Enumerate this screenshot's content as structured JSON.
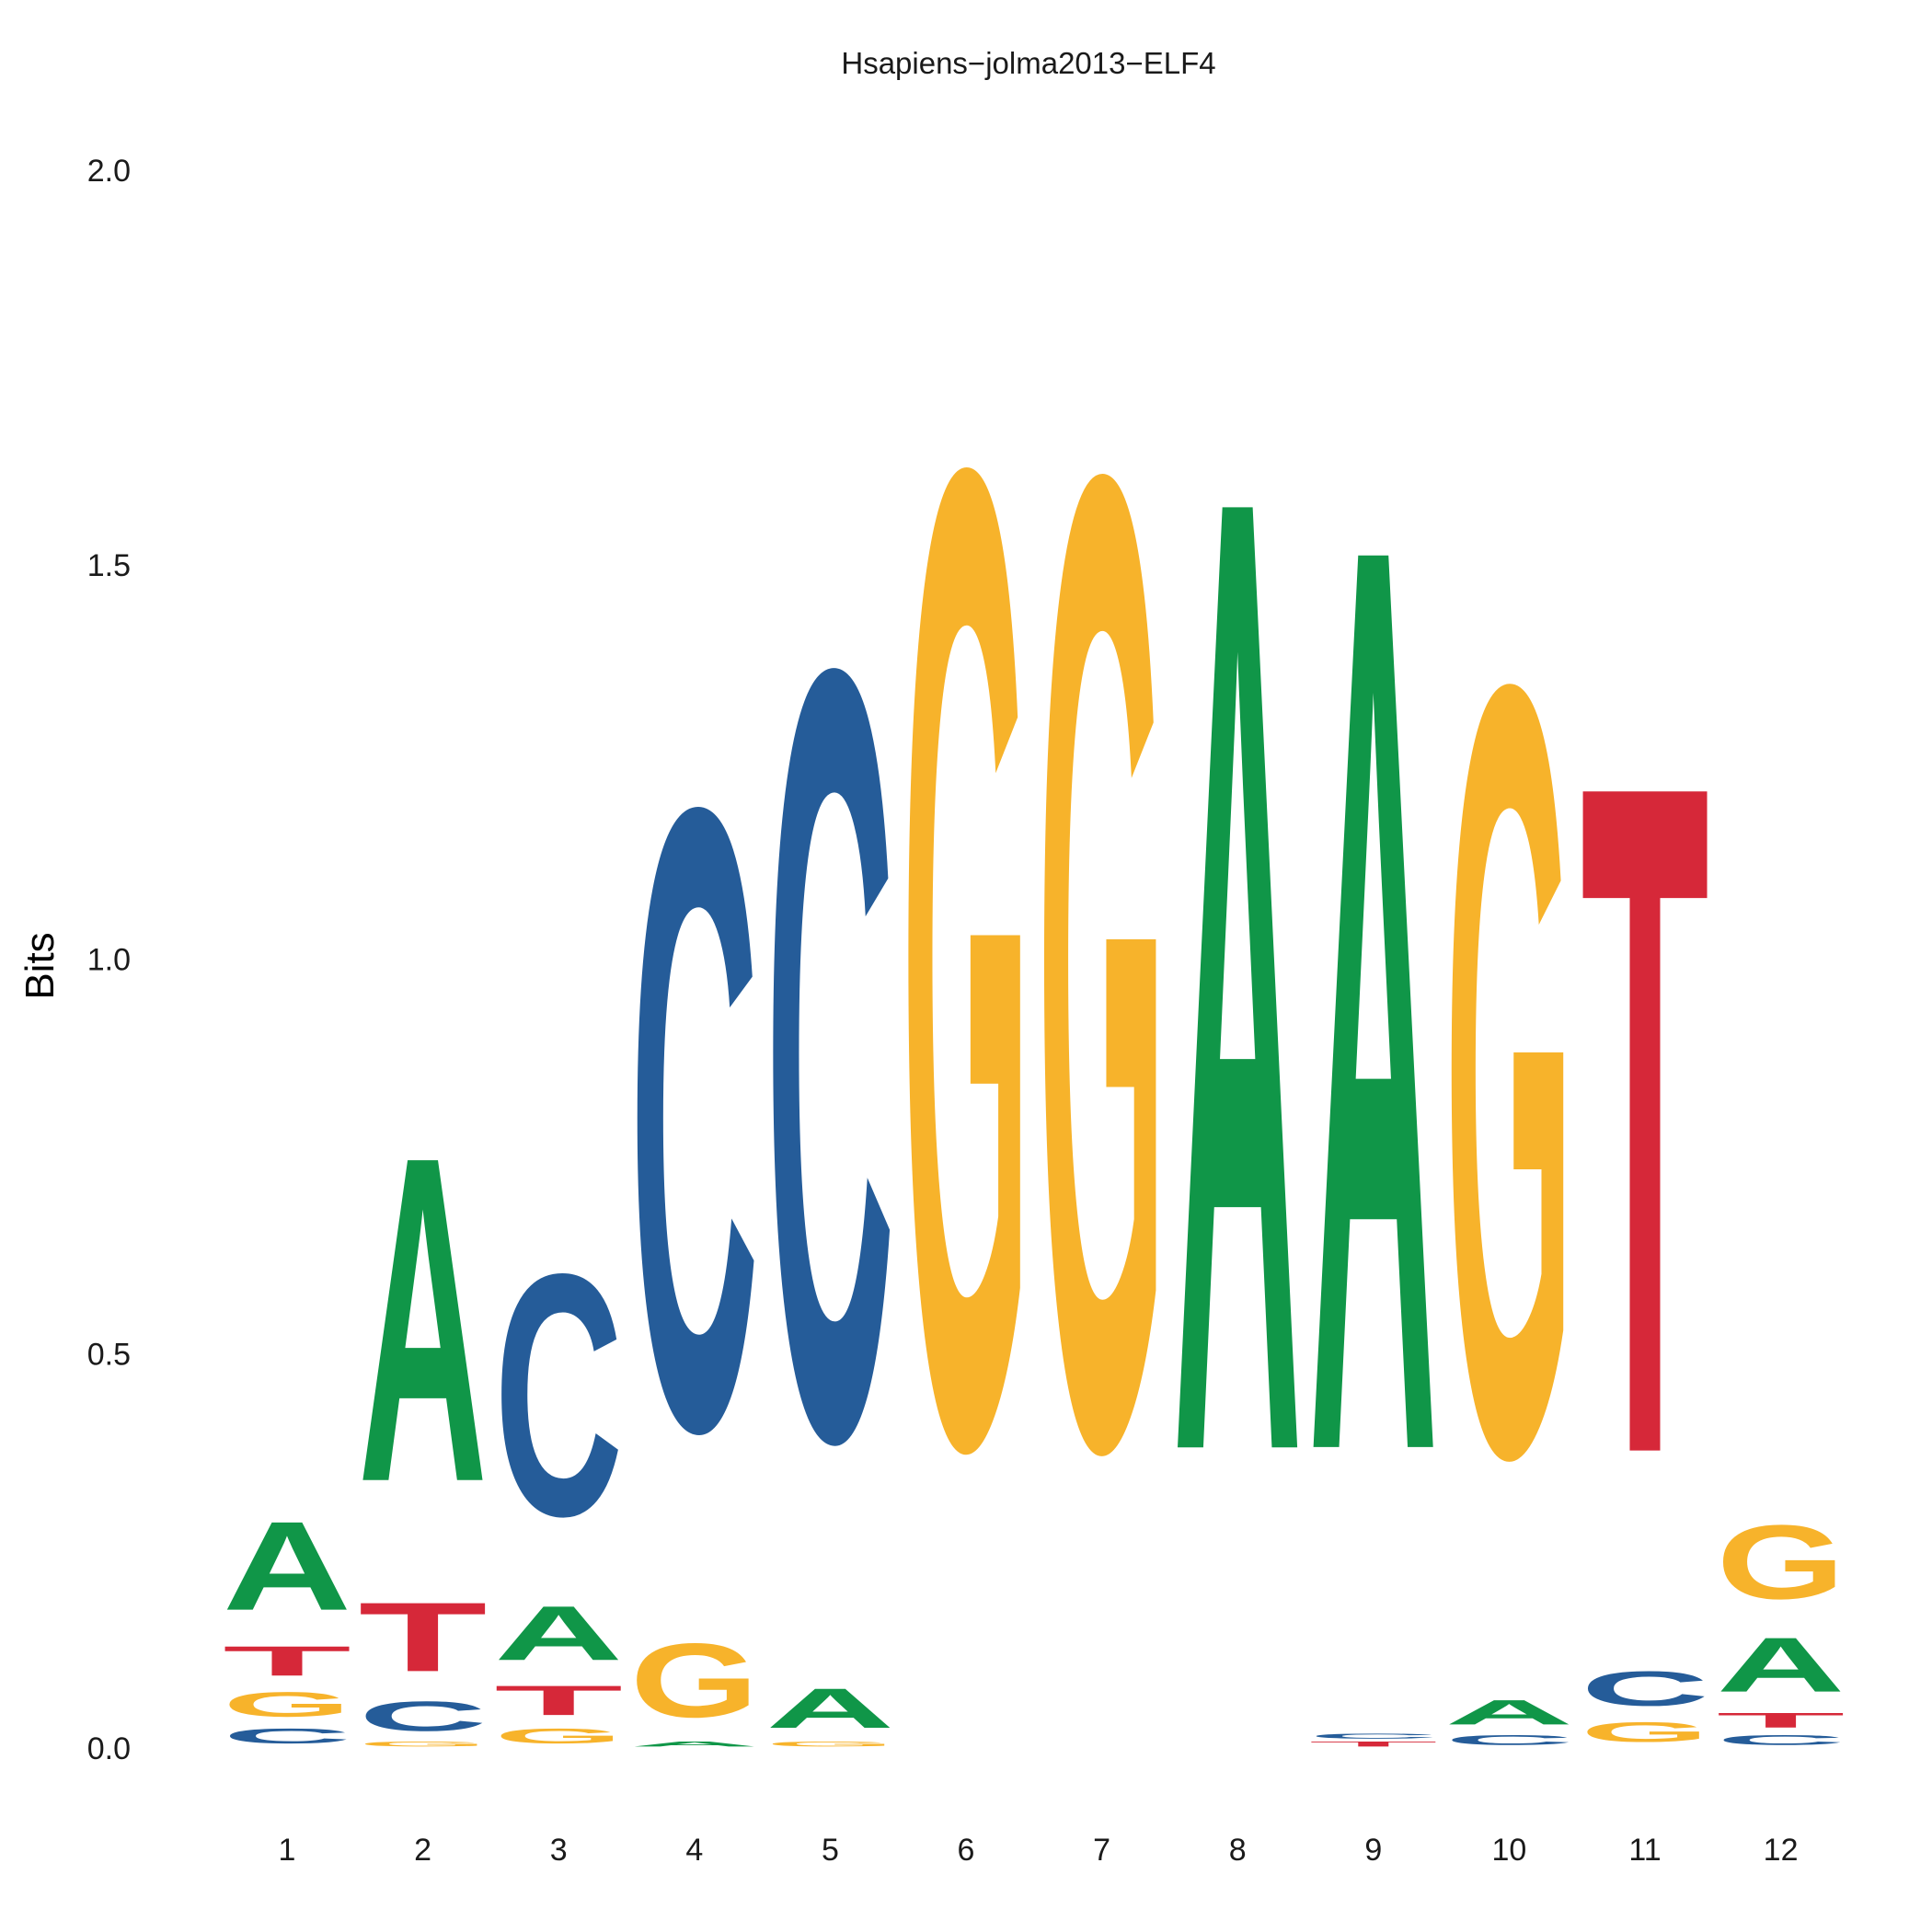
{
  "chart_data": {
    "type": "sequence-logo",
    "title": "Hsapiens−jolma2013−ELF4",
    "ylabel": "Bits",
    "xlabel": "",
    "ylim": [
      0,
      2
    ],
    "y_ticks": [
      "0.0",
      "0.5",
      "1.0",
      "1.5",
      "2.0"
    ],
    "grid": false,
    "colors": {
      "A": "#109648",
      "C": "#255C99",
      "G": "#F7B32B",
      "T": "#D62839"
    },
    "positions": [
      {
        "label": "1",
        "stack": [
          {
            "letter": "C",
            "bits": 0.03
          },
          {
            "letter": "G",
            "bits": 0.05
          },
          {
            "letter": "T",
            "bits": 0.06
          },
          {
            "letter": "A",
            "bits": 0.18
          }
        ]
      },
      {
        "label": "2",
        "stack": [
          {
            "letter": "G",
            "bits": 0.01
          },
          {
            "letter": "C",
            "bits": 0.06
          },
          {
            "letter": "T",
            "bits": 0.14
          },
          {
            "letter": "A",
            "bits": 0.66
          }
        ]
      },
      {
        "label": "3",
        "stack": [
          {
            "letter": "G",
            "bits": 0.03
          },
          {
            "letter": "T",
            "bits": 0.06
          },
          {
            "letter": "A",
            "bits": 0.11
          },
          {
            "letter": "C",
            "bits": 0.49
          }
        ]
      },
      {
        "label": "4",
        "stack": [
          {
            "letter": "A",
            "bits": 0.01
          },
          {
            "letter": "G",
            "bits": 0.15
          },
          {
            "letter": "C",
            "bits": 1.26
          }
        ]
      },
      {
        "label": "5",
        "stack": [
          {
            "letter": "G",
            "bits": 0.01
          },
          {
            "letter": "A",
            "bits": 0.08
          },
          {
            "letter": "C",
            "bits": 1.56
          }
        ]
      },
      {
        "label": "6",
        "stack": [
          {
            "letter": "G",
            "bits": 1.98
          }
        ]
      },
      {
        "label": "7",
        "stack": [
          {
            "letter": "G",
            "bits": 1.97
          }
        ]
      },
      {
        "label": "8",
        "stack": [
          {
            "letter": "A",
            "bits": 1.94
          }
        ]
      },
      {
        "label": "9",
        "stack": [
          {
            "letter": "T",
            "bits": 0.01
          },
          {
            "letter": "C",
            "bits": 0.01
          },
          {
            "letter": "A",
            "bits": 1.84
          }
        ]
      },
      {
        "label": "10",
        "stack": [
          {
            "letter": "C",
            "bits": 0.02
          },
          {
            "letter": "A",
            "bits": 0.05
          },
          {
            "letter": "G",
            "bits": 1.56
          }
        ]
      },
      {
        "label": "11",
        "stack": [
          {
            "letter": "G",
            "bits": 0.04
          },
          {
            "letter": "C",
            "bits": 0.07
          },
          {
            "letter": "T",
            "bits": 1.36
          }
        ]
      },
      {
        "label": "12",
        "stack": [
          {
            "letter": "C",
            "bits": 0.02
          },
          {
            "letter": "T",
            "bits": 0.03
          },
          {
            "letter": "A",
            "bits": 0.11
          },
          {
            "letter": "G",
            "bits": 0.15
          }
        ]
      }
    ]
  }
}
